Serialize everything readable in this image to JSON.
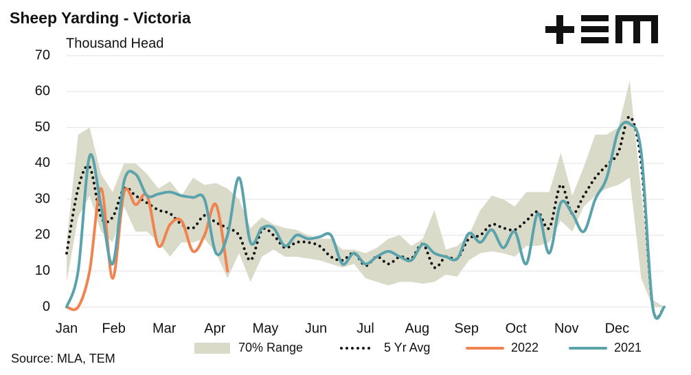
{
  "chart_data": {
    "type": "line",
    "title": "Sheep Yarding - Victoria",
    "subtitle": "Thousand Head",
    "source": "Source: MLA, TEM",
    "x": [
      1,
      2,
      3,
      4,
      5,
      6,
      7,
      8,
      9,
      10,
      11,
      12,
      13,
      14,
      15,
      16,
      17,
      18,
      19,
      20,
      21,
      22,
      23,
      24,
      25,
      26,
      27,
      28,
      29,
      30,
      31,
      32,
      33,
      34,
      35,
      36,
      37,
      38,
      39,
      40,
      41,
      42,
      43,
      44,
      45,
      46,
      47,
      48,
      49,
      50,
      51,
      52,
      53
    ],
    "xlim": [
      1,
      53
    ],
    "xticks": [
      {
        "value": 1,
        "label": "Jan"
      },
      {
        "value": 5.1,
        "label": "Feb"
      },
      {
        "value": 9.5,
        "label": "Mar"
      },
      {
        "value": 13.9,
        "label": "Apr"
      },
      {
        "value": 18.3,
        "label": "May"
      },
      {
        "value": 22.7,
        "label": "Jun"
      },
      {
        "value": 27,
        "label": "Jul"
      },
      {
        "value": 31.5,
        "label": "Aug"
      },
      {
        "value": 35.8,
        "label": "Sep"
      },
      {
        "value": 40.1,
        "label": "Oct"
      },
      {
        "value": 44.5,
        "label": "Nov"
      },
      {
        "value": 48.9,
        "label": "Dec"
      }
    ],
    "ylim": [
      0,
      70
    ],
    "yticks": [
      0,
      10,
      20,
      30,
      40,
      50,
      60,
      70
    ],
    "grid": true,
    "series": [
      {
        "name": "70% Range",
        "color": "#d9dac8",
        "style": "band",
        "low": [
          7,
          25,
          31,
          21,
          18,
          28,
          21,
          21,
          18,
          14,
          18,
          18,
          19,
          15,
          8,
          15,
          7,
          14,
          16,
          14,
          14,
          13.5,
          13,
          12,
          11,
          12,
          8,
          7,
          6,
          7,
          7,
          6.5,
          7,
          9,
          8.5,
          13,
          15,
          15.5,
          15,
          14,
          17,
          17,
          18,
          24,
          21,
          28,
          31,
          33,
          34,
          36,
          8,
          0,
          0
        ],
        "high": [
          18,
          48,
          50,
          37,
          32,
          40,
          40,
          37,
          33,
          35,
          31,
          36,
          34,
          34.5,
          33,
          30,
          22,
          25,
          23,
          22,
          21.5,
          20,
          19,
          19,
          16,
          16,
          15,
          16.5,
          19,
          20,
          17,
          19,
          27,
          16,
          17,
          20,
          27,
          31,
          30,
          28,
          32,
          32,
          32,
          43,
          31,
          39,
          48,
          48,
          50,
          63,
          32,
          2,
          0
        ]
      },
      {
        "name": "5 Yr Avg",
        "color": "#111111",
        "style": "dotted",
        "values": [
          15,
          33,
          39,
          25,
          25,
          33,
          31,
          29,
          27,
          26,
          23,
          22,
          25.5,
          23.5,
          22,
          20,
          13,
          21.5,
          20,
          16.5,
          18,
          18,
          17,
          14,
          13,
          15,
          11.5,
          14,
          12,
          14,
          13.5,
          17.5,
          11,
          14,
          13.5,
          19,
          20,
          23,
          22,
          21.5,
          24,
          26.5,
          22,
          34,
          26,
          31,
          36,
          39.5,
          43,
          53,
          40,
          0,
          0
        ]
      },
      {
        "name": "2022",
        "color": "#f0834f",
        "style": "solid",
        "values": [
          0,
          0,
          10,
          33,
          8,
          32,
          28.5,
          31,
          17,
          23,
          24,
          15.5,
          20,
          28.5,
          10,
          null,
          null,
          null,
          null,
          null,
          null,
          null,
          null,
          null,
          null,
          null,
          null,
          null,
          null,
          null,
          null,
          null,
          null,
          null,
          null,
          null,
          null,
          null,
          null,
          null,
          null,
          null,
          null,
          null,
          null,
          null,
          null,
          null,
          null,
          null,
          null,
          null,
          null
        ]
      },
      {
        "name": "2021",
        "color": "#5ba3ac",
        "style": "solid",
        "values": [
          0,
          10,
          42,
          28,
          12,
          35,
          37,
          31,
          31.5,
          32,
          31,
          30.5,
          30,
          15,
          20,
          36,
          18,
          22,
          22,
          17,
          20,
          19,
          19.5,
          20,
          12,
          15,
          12,
          14,
          15.5,
          14,
          13,
          17.5,
          15,
          14,
          13.5,
          20.5,
          18,
          21.5,
          16.5,
          21,
          12,
          26,
          15,
          29,
          26,
          21,
          30,
          36,
          49,
          51,
          43,
          0,
          0
        ]
      }
    ]
  }
}
